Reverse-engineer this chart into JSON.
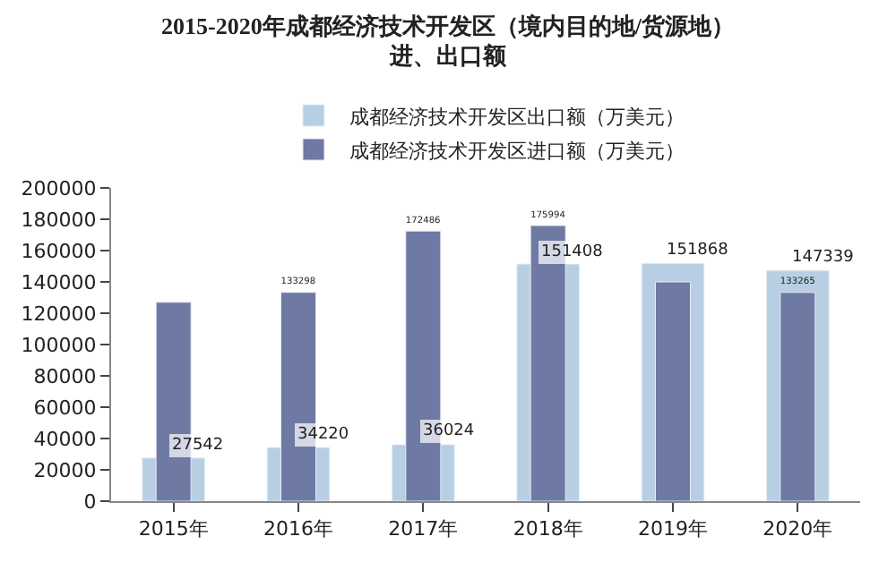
{
  "chart_data": {
    "type": "bar",
    "title": "2015-2020年成都经济技术开发区（境内目的地/货源地）进、出口额",
    "categories": [
      "2015年",
      "2016年",
      "2017年",
      "2018年",
      "2019年",
      "2020年"
    ],
    "series": [
      {
        "name": "成都经济技术开发区出口额（万美元）",
        "color": "#b8cfe3",
        "values": [
          27542,
          34220,
          36024,
          151408,
          151868,
          147339
        ],
        "value_labels": [
          "27542",
          "34220",
          "36024",
          "151408",
          "151868",
          "147339"
        ]
      },
      {
        "name": "成都经济技术开发区进口额（万美元）",
        "color": "#6e7aa3",
        "values": [
          127000,
          133298,
          172486,
          175994,
          140000,
          133265
        ],
        "value_labels": [
          null,
          "133298",
          "172486",
          "175994",
          null,
          "133265"
        ]
      }
    ],
    "ylim": [
      0,
      200000
    ],
    "yticks": [
      0,
      20000,
      40000,
      60000,
      80000,
      100000,
      120000,
      140000,
      160000,
      180000,
      200000
    ],
    "legend": "top"
  }
}
